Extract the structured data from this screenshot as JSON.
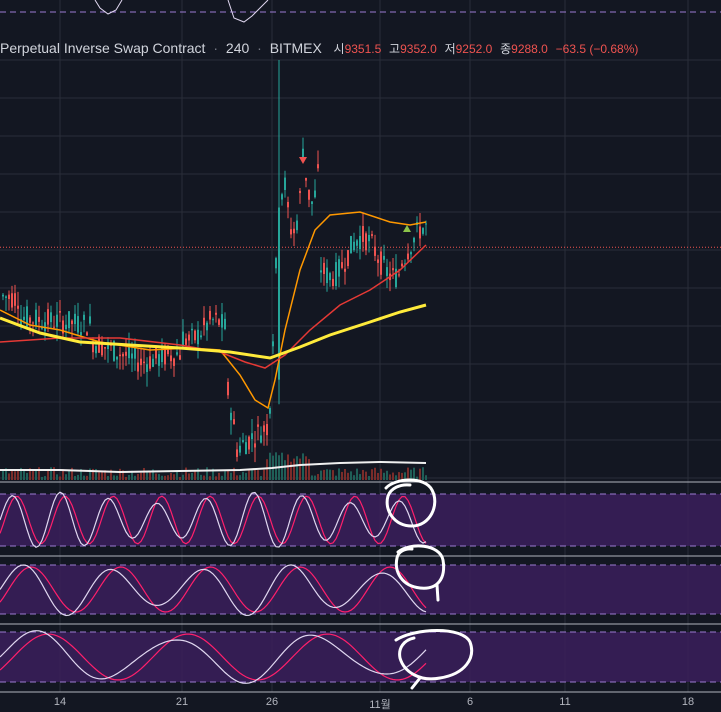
{
  "header": {
    "symbol": "Perpetual Inverse Swap Contract",
    "interval": "240",
    "exchange": "BITMEX",
    "open_label": "시",
    "open": "9351.5",
    "high_label": "고",
    "high": "9352.0",
    "low_label": "저",
    "low": "9252.0",
    "close_label": "종",
    "close": "9288.0",
    "change": "−63.5 (−0.68%)"
  },
  "colors": {
    "background": "#131722",
    "up": "#26a69a",
    "down": "#ef5350",
    "ma_fast": "#ff9800",
    "ma_mid": "#e53935",
    "ma_slow": "#ffeb3b",
    "osc_band": "#3b1f5c",
    "osc_k": "#e0d7f0",
    "osc_d": "#ff1f6b",
    "annotation": "#ffffff",
    "grid": "#2a2e39"
  },
  "chart_data": {
    "type": "candlestick",
    "x_ticks": [
      "14",
      "21",
      "26",
      "11월",
      "6",
      "11",
      "18"
    ],
    "price_range": [
      8900,
      9750
    ],
    "key_levels": {
      "start": 9240,
      "pre_pump_low": 8930,
      "pump_high": 9650,
      "consolidation_high": 9450,
      "consolidation_low": 9250,
      "last_close": 9288.0
    },
    "moving_averages": [
      {
        "color_key": "ma_fast",
        "trend": "tracks price closely"
      },
      {
        "color_key": "ma_mid",
        "trend": "rising after pump"
      },
      {
        "color_key": "ma_slow",
        "trend": "slow uptrend"
      }
    ],
    "indicators": [
      {
        "type": "stochastic",
        "lines": 2
      },
      {
        "type": "stochastic",
        "lines": 2
      },
      {
        "type": "stochastic",
        "lines": 2
      }
    ],
    "annotations": "hand-drawn white circles at right end of each oscillator pane"
  }
}
